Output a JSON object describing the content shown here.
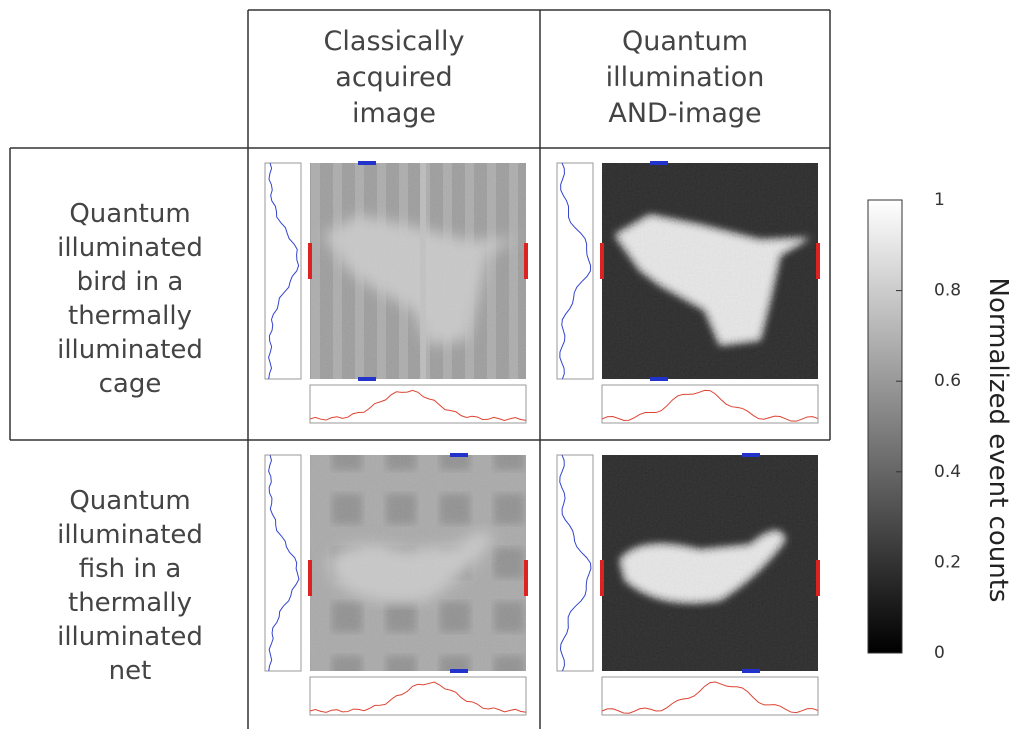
{
  "table": {
    "column_headers": [
      [
        "Classically",
        "acquired",
        "image"
      ],
      [
        "Quantum",
        "illumination",
        "AND-image"
      ]
    ],
    "row_headers": [
      [
        "Quantum",
        "illuminated",
        "bird in a",
        "thermally",
        "illuminated",
        "cage"
      ],
      [
        "Quantum",
        "illuminated",
        "fish in a",
        "thermally",
        "illuminated",
        "net"
      ]
    ]
  },
  "colorbar": {
    "label": "Normalized event counts",
    "range": [
      0,
      1
    ],
    "ticks": [
      0,
      0.2,
      0.4,
      0.6,
      0.8,
      1
    ]
  }
}
